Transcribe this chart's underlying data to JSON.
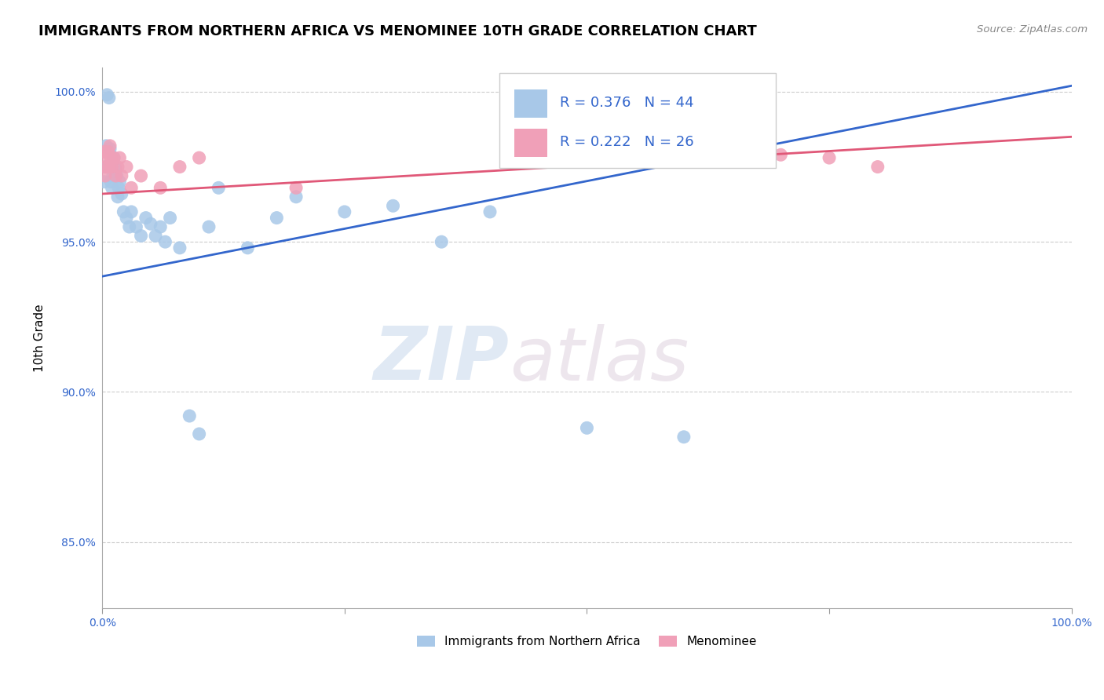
{
  "title": "IMMIGRANTS FROM NORTHERN AFRICA VS MENOMINEE 10TH GRADE CORRELATION CHART",
  "source": "Source: ZipAtlas.com",
  "ylabel": "10th Grade",
  "blue_label": "Immigrants from Northern Africa",
  "pink_label": "Menominee",
  "blue_R": 0.376,
  "blue_N": 44,
  "pink_R": 0.222,
  "pink_N": 26,
  "blue_color": "#a8c8e8",
  "pink_color": "#f0a0b8",
  "blue_line_color": "#3366cc",
  "pink_line_color": "#e05878",
  "xlim": [
    0.0,
    1.0
  ],
  "ylim": [
    0.828,
    1.008
  ],
  "yticks": [
    0.85,
    0.9,
    0.95,
    1.0
  ],
  "ytick_labels": [
    "85.0%",
    "90.0%",
    "95.0%",
    "100.0%"
  ],
  "xticks": [
    0.0,
    0.25,
    0.5,
    0.75,
    1.0
  ],
  "xtick_labels": [
    "0.0%",
    "",
    "",
    "",
    "100.0%"
  ],
  "blue_x": [
    0.002,
    0.003,
    0.004,
    0.005,
    0.006,
    0.007,
    0.008,
    0.009,
    0.01,
    0.011,
    0.012,
    0.013,
    0.014,
    0.015,
    0.016,
    0.017,
    0.018,
    0.02,
    0.022,
    0.025,
    0.028,
    0.03,
    0.035,
    0.04,
    0.045,
    0.05,
    0.055,
    0.06,
    0.065,
    0.07,
    0.08,
    0.09,
    0.1,
    0.11,
    0.12,
    0.15,
    0.18,
    0.2,
    0.25,
    0.3,
    0.35,
    0.4,
    0.5,
    0.6
  ],
  "blue_y": [
    0.97,
    0.975,
    0.982,
    0.999,
    0.975,
    0.998,
    0.981,
    0.97,
    0.968,
    0.972,
    0.978,
    0.975,
    0.974,
    0.972,
    0.965,
    0.968,
    0.97,
    0.966,
    0.96,
    0.958,
    0.955,
    0.96,
    0.955,
    0.952,
    0.958,
    0.956,
    0.952,
    0.955,
    0.95,
    0.958,
    0.948,
    0.892,
    0.886,
    0.955,
    0.968,
    0.948,
    0.958,
    0.965,
    0.96,
    0.962,
    0.95,
    0.96,
    0.888,
    0.885
  ],
  "pink_x": [
    0.002,
    0.003,
    0.004,
    0.005,
    0.006,
    0.007,
    0.008,
    0.009,
    0.01,
    0.012,
    0.014,
    0.016,
    0.018,
    0.02,
    0.025,
    0.03,
    0.04,
    0.06,
    0.08,
    0.1,
    0.2,
    0.5,
    0.55,
    0.7,
    0.75,
    0.8
  ],
  "pink_y": [
    0.98,
    0.972,
    0.975,
    0.978,
    0.98,
    0.975,
    0.982,
    0.978,
    0.975,
    0.978,
    0.972,
    0.975,
    0.978,
    0.972,
    0.975,
    0.968,
    0.972,
    0.968,
    0.975,
    0.978,
    0.968,
    0.979,
    0.978,
    0.979,
    0.978,
    0.975
  ],
  "blue_trend_x": [
    0.0,
    1.0
  ],
  "blue_trend_y": [
    0.9385,
    1.002
  ],
  "pink_trend_x": [
    0.0,
    1.0
  ],
  "pink_trend_y": [
    0.966,
    0.985
  ],
  "watermark_zip": "ZIP",
  "watermark_atlas": "atlas",
  "title_fontsize": 13,
  "axis_label_fontsize": 11,
  "tick_fontsize": 10,
  "legend_fontsize": 13
}
